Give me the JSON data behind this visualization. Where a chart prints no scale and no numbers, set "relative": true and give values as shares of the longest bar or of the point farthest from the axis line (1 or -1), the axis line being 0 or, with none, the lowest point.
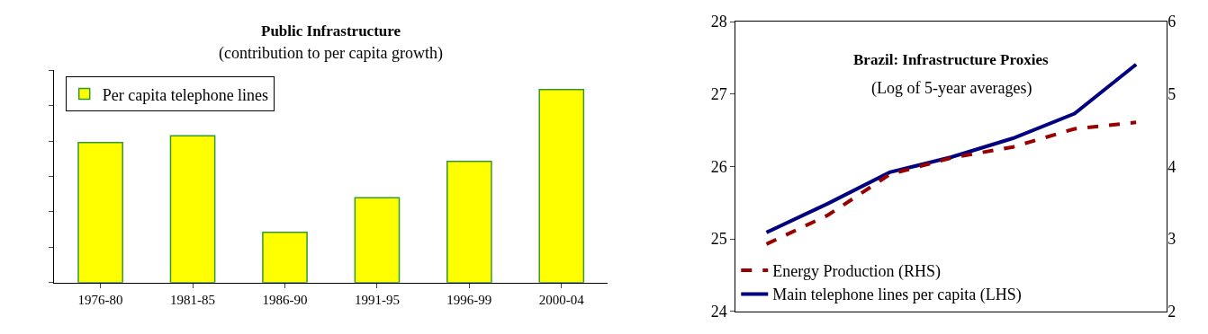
{
  "chart_data": [
    {
      "type": "bar",
      "title": "Public Infrastructure",
      "subtitle": "(contribution to per capita growth)",
      "relative": true,
      "categories": [
        "1976-80",
        "1981-85",
        "1986-90",
        "1991-95",
        "1996-99",
        "2000-04"
      ],
      "series": [
        {
          "name": "Per capita telephone lines",
          "color": "#ffff00",
          "values": [
            0.726,
            0.761,
            0.261,
            0.44,
            0.628,
            1.0
          ]
        }
      ],
      "legend": "top left"
    },
    {
      "type": "line",
      "title": "Brazil: Infrastructure Proxies",
      "subtitle": "(Log of 5-year averages)",
      "categories": [
        null,
        null,
        null,
        null,
        null,
        null,
        null
      ],
      "series": [
        {
          "name": "Energy Production (RHS)",
          "color": "#990000",
          "axis": "y2",
          "line_style": "dashed",
          "values": [
            2.93,
            3.33,
            3.89,
            4.12,
            4.27,
            4.52,
            4.61
          ]
        },
        {
          "name": "Main telephone lines per capita (LHS)",
          "color": "#000080",
          "line_style": "solid",
          "values": [
            25.09,
            25.49,
            25.92,
            26.13,
            26.39,
            26.73,
            27.41
          ]
        }
      ],
      "ylim": [
        24,
        28
      ],
      "yticks": [
        24,
        25,
        26,
        27,
        28
      ],
      "y2lim": [
        2,
        6
      ],
      "y2ticks": [
        2,
        3,
        4,
        5,
        6
      ],
      "legend": "bottom left",
      "marker": "none"
    }
  ]
}
